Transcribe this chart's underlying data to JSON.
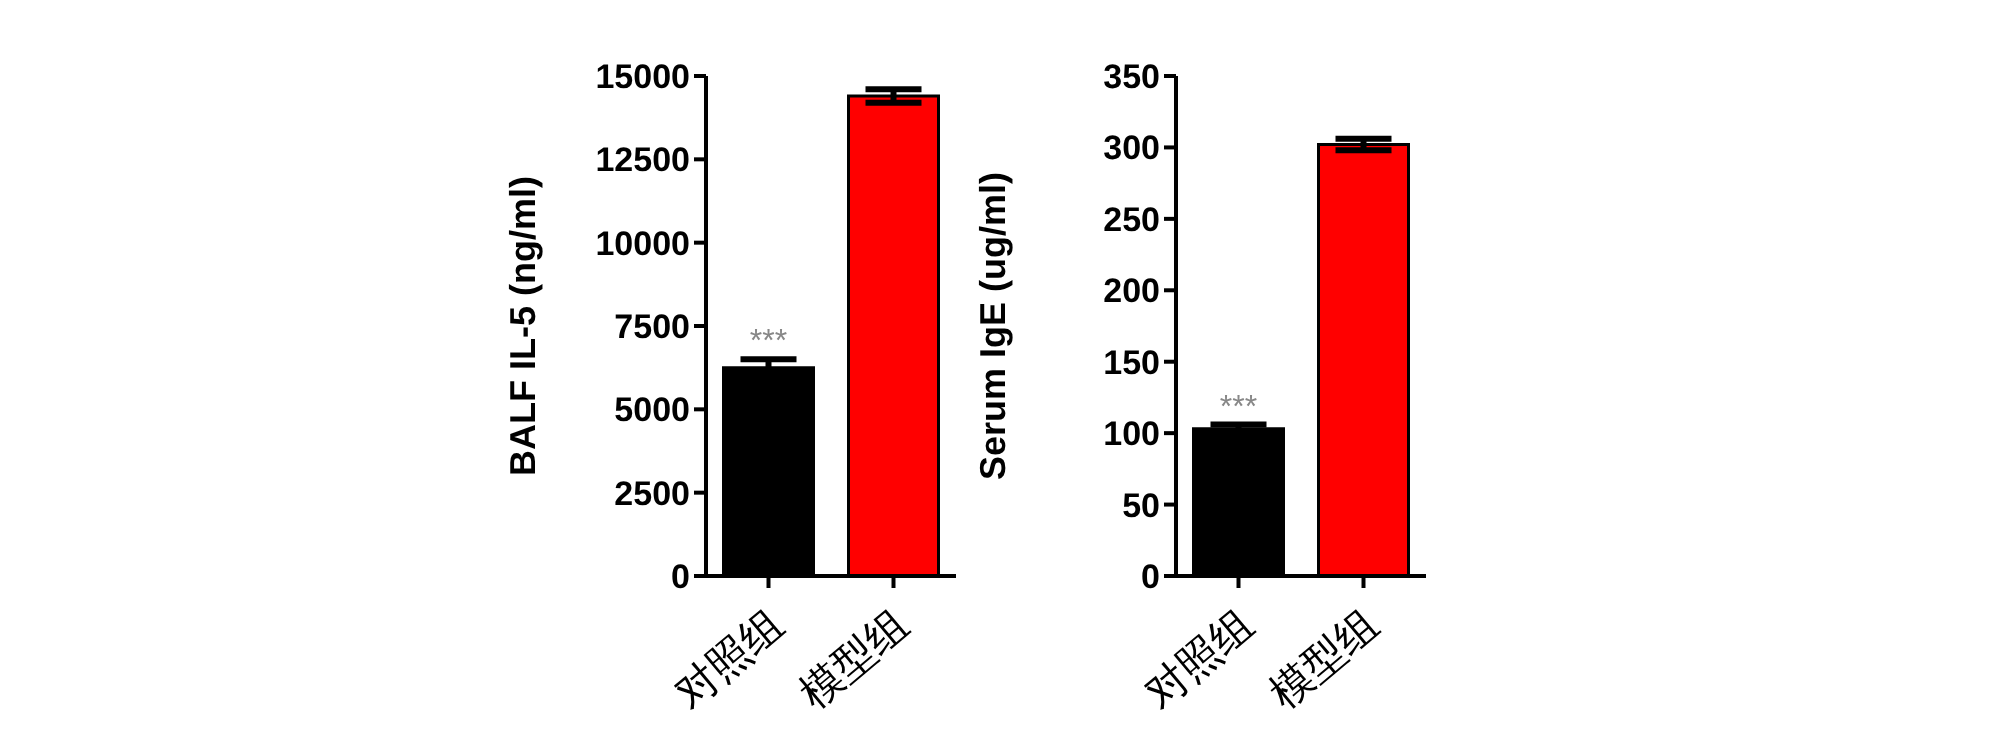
{
  "chart_data": [
    {
      "type": "bar",
      "ylabel": "BALF IL-5 (ng/ml)",
      "categories": [
        "对照组",
        "模型组"
      ],
      "values": [
        6250,
        14400
      ],
      "errors": [
        250,
        200
      ],
      "colors": [
        "#000000",
        "#ff0000"
      ],
      "ylim": [
        0,
        15000
      ],
      "yticks": [
        0,
        2500,
        5000,
        7500,
        10000,
        12500,
        15000
      ],
      "grid": false,
      "legend": false,
      "annotations": [
        {
          "text": "***",
          "x": "对照组",
          "y": 6500
        }
      ]
    },
    {
      "type": "bar",
      "ylabel": "Serum IgE (ug/ml)",
      "categories": [
        "对照组",
        "模型组"
      ],
      "values": [
        103,
        302
      ],
      "errors": [
        3,
        4
      ],
      "colors": [
        "#000000",
        "#ff0000"
      ],
      "ylim": [
        0,
        350
      ],
      "yticks": [
        0,
        50,
        100,
        150,
        200,
        250,
        300,
        350
      ],
      "grid": false,
      "legend": false,
      "annotations": [
        {
          "text": "***",
          "x": "对照组",
          "y": 106
        }
      ]
    }
  ]
}
